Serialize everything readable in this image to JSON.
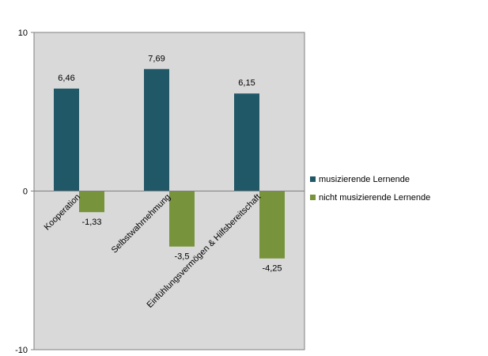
{
  "chart_data": {
    "type": "bar",
    "categories": [
      "Kooperation",
      "Selbstwahrnehmung",
      "Einfühlungsvermögen & Hilfsbereitschaft"
    ],
    "series": [
      {
        "name": "musizierende Lernende",
        "values": [
          6.46,
          7.69,
          6.15
        ],
        "labels": [
          "6,46",
          "7,69",
          "6,15"
        ],
        "color": "#215868"
      },
      {
        "name": "nicht musizierende Lernende",
        "values": [
          -1.33,
          -3.5,
          -4.25
        ],
        "labels": [
          "-1,33",
          "-3,5",
          "-4,25"
        ],
        "color": "#77933C"
      }
    ],
    "ylim": [
      -10,
      10
    ],
    "yticks": [
      {
        "value": 10,
        "label": "10"
      },
      {
        "value": 0,
        "label": "0"
      },
      {
        "value": -10,
        "label": "-10"
      }
    ],
    "plot_background": "#D9D9D9",
    "legend_position": "right",
    "title": "",
    "xlabel": "",
    "ylabel": ""
  }
}
